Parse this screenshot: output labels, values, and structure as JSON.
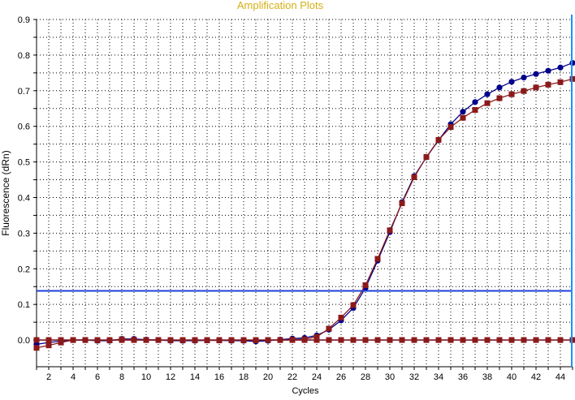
{
  "chart_data": {
    "type": "line",
    "title": "Amplification Plots",
    "xlabel": "Cycles",
    "ylabel": "Fluorescence (dRn)",
    "xlim": [
      1,
      45
    ],
    "ylim": [
      -0.075,
      0.9
    ],
    "xticks": [
      2,
      4,
      6,
      8,
      10,
      12,
      14,
      16,
      18,
      20,
      22,
      24,
      26,
      28,
      30,
      32,
      34,
      36,
      38,
      40,
      42,
      44
    ],
    "yticks": [
      0.0,
      0.1,
      0.2,
      0.3,
      0.4,
      0.5,
      0.6,
      0.7,
      0.8,
      0.9
    ],
    "ytick_labels": [
      "0.0",
      "0.1",
      "0.2",
      "0.3",
      "0.4",
      "0.5",
      "0.6",
      "0.7",
      "0.8",
      "0.9"
    ],
    "grid": true,
    "threshold": 0.138,
    "cursor_x": 45,
    "x": [
      1,
      2,
      3,
      4,
      5,
      6,
      7,
      8,
      9,
      10,
      11,
      12,
      13,
      14,
      15,
      16,
      17,
      18,
      19,
      20,
      21,
      22,
      23,
      24,
      25,
      26,
      27,
      28,
      29,
      30,
      31,
      32,
      33,
      34,
      35,
      36,
      37,
      38,
      39,
      40,
      41,
      42,
      43,
      44,
      45
    ],
    "series": [
      {
        "color": "#00008b",
        "marker": "circle",
        "values": [
          -0.012,
          -0.007,
          -0.003,
          0.0,
          0.0,
          -0.002,
          -0.002,
          0.003,
          0.003,
          0.001,
          0.0,
          -0.002,
          -0.002,
          -0.002,
          -0.001,
          -0.001,
          -0.002,
          -0.002,
          -0.004,
          -0.002,
          0.001,
          0.004,
          0.006,
          0.013,
          0.029,
          0.055,
          0.09,
          0.146,
          0.223,
          0.303,
          0.387,
          0.46,
          0.513,
          0.561,
          0.606,
          0.641,
          0.668,
          0.69,
          0.709,
          0.725,
          0.737,
          0.747,
          0.756,
          0.765,
          0.778
        ]
      },
      {
        "color": "#8b1a1a",
        "marker": "square",
        "values": [
          -0.022,
          -0.015,
          -0.007,
          0.0,
          0.0,
          -0.001,
          -0.001,
          0.002,
          0.001,
          0.0,
          0.0,
          -0.001,
          -0.001,
          -0.001,
          -0.001,
          -0.001,
          -0.001,
          -0.001,
          -0.001,
          0.0,
          0.0,
          0.001,
          0.002,
          0.009,
          0.032,
          0.063,
          0.098,
          0.154,
          0.228,
          0.308,
          0.384,
          0.457,
          0.514,
          0.562,
          0.598,
          0.624,
          0.646,
          0.665,
          0.679,
          0.69,
          0.699,
          0.709,
          0.717,
          0.724,
          0.733
        ]
      },
      {
        "color": "#00008b",
        "marker": "circle",
        "values": [
          0.0,
          0.0,
          0.0,
          0.0,
          0.0,
          0.0,
          0.0,
          0.0,
          0.0,
          0.0,
          0.0,
          0.0,
          0.0,
          0.0,
          0.0,
          0.0,
          0.0,
          0.0,
          0.0,
          0.0,
          0.0,
          0.0,
          0.0,
          0.0,
          0.0,
          0.0,
          0.0,
          0.0,
          0.0,
          0.0,
          0.0,
          0.0,
          0.0,
          0.0,
          0.0,
          0.0,
          0.0,
          0.0,
          0.0,
          0.0,
          0.0,
          0.0,
          0.0,
          0.0,
          0.0
        ]
      },
      {
        "color": "#8b1a1a",
        "marker": "square",
        "values": [
          0.0,
          0.0,
          0.0,
          0.0,
          0.0,
          0.0,
          0.0,
          0.0,
          0.0,
          0.0,
          0.0,
          0.0,
          0.0,
          0.0,
          0.0,
          0.0,
          0.0,
          0.0,
          0.0,
          0.0,
          0.0,
          0.0,
          0.0,
          0.0,
          0.0,
          0.0,
          0.0,
          0.0,
          0.0,
          0.0,
          0.0,
          0.0,
          0.0,
          0.0,
          0.0,
          0.0,
          0.0,
          0.0,
          0.0,
          0.0,
          0.0,
          0.0,
          0.0,
          0.0,
          0.0
        ]
      }
    ],
    "colors": {
      "title": "#d4b015",
      "threshold_line": "#1f3fd6",
      "cursor_line": "#1e90ff",
      "grid": "#000000",
      "axis": "#000000"
    }
  }
}
